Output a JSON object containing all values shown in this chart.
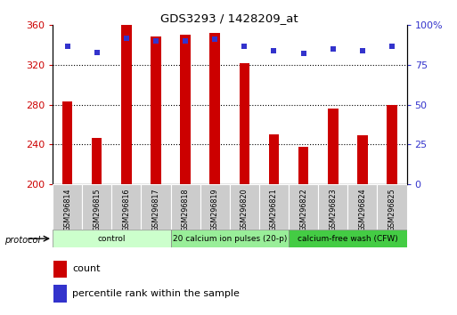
{
  "title": "GDS3293 / 1428209_at",
  "samples": [
    "GSM296814",
    "GSM296815",
    "GSM296816",
    "GSM296817",
    "GSM296818",
    "GSM296819",
    "GSM296820",
    "GSM296821",
    "GSM296822",
    "GSM296823",
    "GSM296824",
    "GSM296825"
  ],
  "counts": [
    283,
    247,
    360,
    349,
    350,
    352,
    322,
    250,
    238,
    276,
    249,
    280
  ],
  "percentile_ranks": [
    87,
    83,
    92,
    90,
    90,
    91,
    87,
    84,
    82,
    85,
    84,
    87
  ],
  "y_min": 200,
  "y_max": 360,
  "y_ticks_left": [
    200,
    240,
    280,
    320,
    360
  ],
  "y_ticks_right": [
    0,
    25,
    50,
    75,
    100
  ],
  "bar_color": "#cc0000",
  "dot_color": "#3333cc",
  "bg_color": "#ffffff",
  "grid_lines": [
    240,
    280,
    320
  ],
  "groups": [
    {
      "label": "control",
      "start": 0,
      "end": 3,
      "color": "#ccffcc"
    },
    {
      "label": "20 calcium ion pulses (20-p)",
      "start": 4,
      "end": 7,
      "color": "#99ee99"
    },
    {
      "label": "calcium-free wash (CFW)",
      "start": 8,
      "end": 11,
      "color": "#44cc44"
    }
  ],
  "legend_count_label": "count",
  "legend_pct_label": "percentile rank within the sample",
  "protocol_label": "protocol",
  "label_box_color": "#cccccc",
  "bar_width": 0.35
}
